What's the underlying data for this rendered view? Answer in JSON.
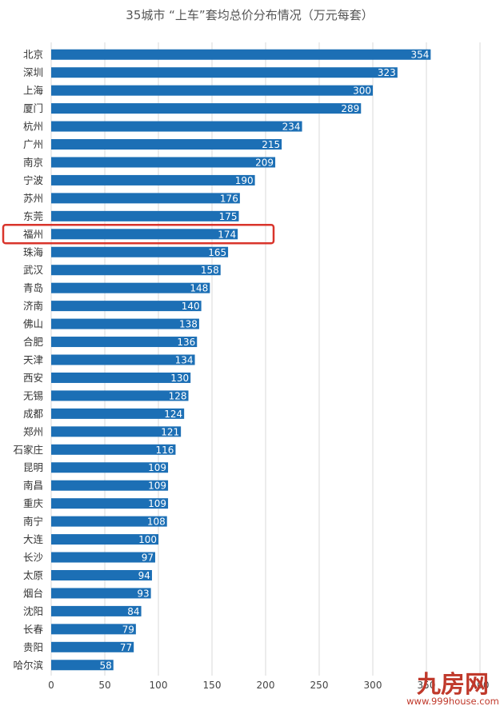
{
  "chart_data": {
    "type": "bar",
    "orientation": "horizontal",
    "title": "35城市 “上车”套均总价分布情况（万元每套）",
    "categories": [
      "北京",
      "深圳",
      "上海",
      "厦门",
      "杭州",
      "广州",
      "南京",
      "宁波",
      "苏州",
      "东莞",
      "福州",
      "珠海",
      "武汉",
      "青岛",
      "济南",
      "佛山",
      "合肥",
      "天津",
      "西安",
      "无锡",
      "成都",
      "郑州",
      "石家庄",
      "昆明",
      "南昌",
      "重庆",
      "南宁",
      "大连",
      "长沙",
      "太原",
      "烟台",
      "沈阳",
      "长春",
      "贵阳",
      "哈尔滨"
    ],
    "values": [
      354,
      323,
      300,
      289,
      234,
      215,
      209,
      190,
      176,
      175,
      174,
      165,
      158,
      148,
      140,
      138,
      136,
      134,
      130,
      128,
      124,
      121,
      116,
      109,
      109,
      109,
      108,
      100,
      97,
      94,
      93,
      84,
      79,
      77,
      58
    ],
    "xticks": [
      "0",
      "50",
      "100",
      "150",
      "200",
      "250",
      "300",
      "350",
      "400"
    ],
    "xlim": [
      0,
      400
    ],
    "grid": true,
    "bar_color": "#1c6fb5",
    "highlight": {
      "category": "福州",
      "color": "#d9342b"
    }
  },
  "watermark": {
    "main": "九房网",
    "sub": "www.999house.com",
    "color": "#c0392b"
  }
}
